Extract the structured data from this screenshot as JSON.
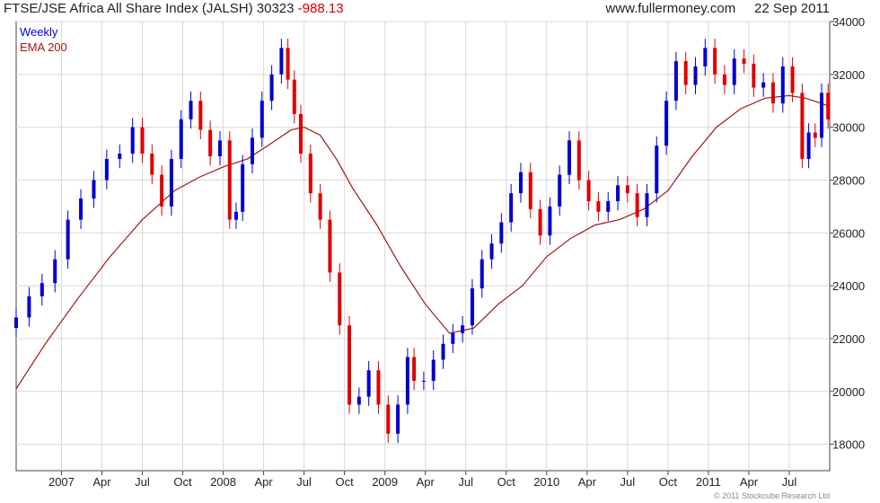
{
  "header": {
    "title": "FTSE/JSE Africa All Share Index (JALSH) 30323",
    "change": "-988.13",
    "website": "www.fullermoney.com",
    "date": "22 Sep 2011"
  },
  "legend": {
    "weekly": "Weekly",
    "ema": "EMA 200"
  },
  "credit": "© 2011 Stockcube Research Ltd",
  "colors": {
    "up": "#0000cc",
    "down": "#e00000",
    "ema": "#a31515",
    "grid": "#d8d8d8",
    "axis": "#444444"
  },
  "chart_data": {
    "type": "line",
    "title": "FTSE/JSE Africa All Share Index (JALSH) 30323",
    "xlabel": "",
    "ylabel": "",
    "ylim": [
      17000,
      34000
    ],
    "yticks": [
      18000,
      20000,
      22000,
      24000,
      26000,
      28000,
      30000,
      32000,
      34000
    ],
    "xtick_labels": [
      "2007",
      "Apr",
      "Jul",
      "Oct",
      "2008",
      "Apr",
      "Jul",
      "Oct",
      "2009",
      "Apr",
      "Jul",
      "Oct",
      "2010",
      "Apr",
      "Jul",
      "Oct",
      "2011",
      "Apr",
      "Jul"
    ],
    "x_range": [
      2006.72,
      2011.75
    ],
    "xtick_positions": [
      2007.0,
      2007.25,
      2007.5,
      2007.75,
      2008.0,
      2008.25,
      2008.5,
      2008.75,
      2009.0,
      2009.25,
      2009.5,
      2009.75,
      2010.0,
      2010.25,
      2010.5,
      2010.75,
      2011.0,
      2011.25,
      2011.5
    ],
    "grid": true,
    "legend_position": "top-left",
    "series": [
      {
        "name": "Weekly",
        "style": "candlestick",
        "x": [
          2006.72,
          2006.8,
          2006.88,
          2006.96,
          2007.04,
          2007.12,
          2007.2,
          2007.28,
          2007.36,
          2007.44,
          2007.5,
          2007.56,
          2007.62,
          2007.68,
          2007.74,
          2007.8,
          2007.86,
          2007.92,
          2007.98,
          2008.04,
          2008.08,
          2008.12,
          2008.18,
          2008.24,
          2008.3,
          2008.36,
          2008.4,
          2008.44,
          2008.48,
          2008.54,
          2008.6,
          2008.66,
          2008.72,
          2008.78,
          2008.84,
          2008.9,
          2008.96,
          2009.02,
          2009.08,
          2009.14,
          2009.18,
          2009.24,
          2009.3,
          2009.36,
          2009.42,
          2009.48,
          2009.54,
          2009.6,
          2009.66,
          2009.72,
          2009.78,
          2009.84,
          2009.9,
          2009.96,
          2010.02,
          2010.08,
          2010.14,
          2010.2,
          2010.26,
          2010.32,
          2010.38,
          2010.44,
          2010.5,
          2010.56,
          2010.62,
          2010.68,
          2010.74,
          2010.8,
          2010.86,
          2010.92,
          2010.98,
          2011.04,
          2011.1,
          2011.16,
          2011.22,
          2011.28,
          2011.34,
          2011.4,
          2011.46,
          2011.52,
          2011.58,
          2011.62,
          2011.66,
          2011.7,
          2011.74
        ],
        "close": [
          22800,
          23600,
          24100,
          25000,
          26500,
          27300,
          28000,
          28800,
          29000,
          30000,
          29000,
          28200,
          27000,
          28800,
          30300,
          31000,
          29900,
          28900,
          29500,
          26500,
          26800,
          28600,
          29600,
          31000,
          32000,
          33000,
          31800,
          30500,
          29000,
          27500,
          26500,
          24500,
          22500,
          19500,
          19800,
          20800,
          19500,
          18400,
          19500,
          21300,
          20400,
          20400,
          21200,
          21800,
          22200,
          22500,
          23900,
          25000,
          25600,
          26400,
          27500,
          28300,
          26900,
          25900,
          27000,
          28200,
          29500,
          28000,
          27200,
          26800,
          27200,
          27800,
          27500,
          26600,
          27500,
          29300,
          31000,
          32500,
          31600,
          32300,
          33000,
          32000,
          31600,
          32600,
          32400,
          31500,
          31700,
          30900,
          32300,
          31300,
          28800,
          29800,
          29600,
          31300,
          30300
        ],
        "open": [
          22400,
          22800,
          23600,
          24100,
          25000,
          26500,
          27300,
          28000,
          28800,
          29000,
          30000,
          29000,
          28200,
          27000,
          28800,
          30300,
          31000,
          29900,
          28900,
          29500,
          26500,
          26800,
          28600,
          29600,
          31000,
          32000,
          33000,
          31800,
          30500,
          29000,
          27500,
          26500,
          24500,
          22500,
          19500,
          19800,
          20800,
          19500,
          18400,
          19500,
          21300,
          20400,
          20400,
          21200,
          21800,
          22200,
          22500,
          23900,
          25000,
          25600,
          26400,
          27500,
          28300,
          26900,
          25900,
          27000,
          28200,
          29500,
          28000,
          27200,
          26800,
          27200,
          27800,
          27500,
          26600,
          27500,
          29300,
          31000,
          32500,
          31600,
          32300,
          33000,
          32000,
          31600,
          32600,
          32400,
          31500,
          31700,
          30900,
          32300,
          31300,
          28800,
          29800,
          29600,
          31300
        ]
      },
      {
        "name": "EMA 200",
        "style": "line",
        "x": [
          2006.72,
          2006.9,
          2007.1,
          2007.3,
          2007.5,
          2007.7,
          2007.85,
          2008.0,
          2008.15,
          2008.3,
          2008.42,
          2008.5,
          2008.6,
          2008.7,
          2008.8,
          2008.95,
          2009.1,
          2009.25,
          2009.4,
          2009.55,
          2009.7,
          2009.85,
          2010.0,
          2010.15,
          2010.3,
          2010.45,
          2010.6,
          2010.75,
          2010.9,
          2011.05,
          2011.2,
          2011.35,
          2011.5,
          2011.6,
          2011.7,
          2011.74
        ],
        "values": [
          20100,
          21800,
          23500,
          25100,
          26500,
          27600,
          28100,
          28500,
          28800,
          29400,
          29900,
          30000,
          29700,
          28800,
          27700,
          26300,
          24700,
          23300,
          22200,
          22400,
          23300,
          24000,
          25100,
          25800,
          26300,
          26500,
          26900,
          27600,
          28900,
          30000,
          30700,
          31100,
          31200,
          31100,
          30900,
          30800
        ]
      }
    ]
  }
}
